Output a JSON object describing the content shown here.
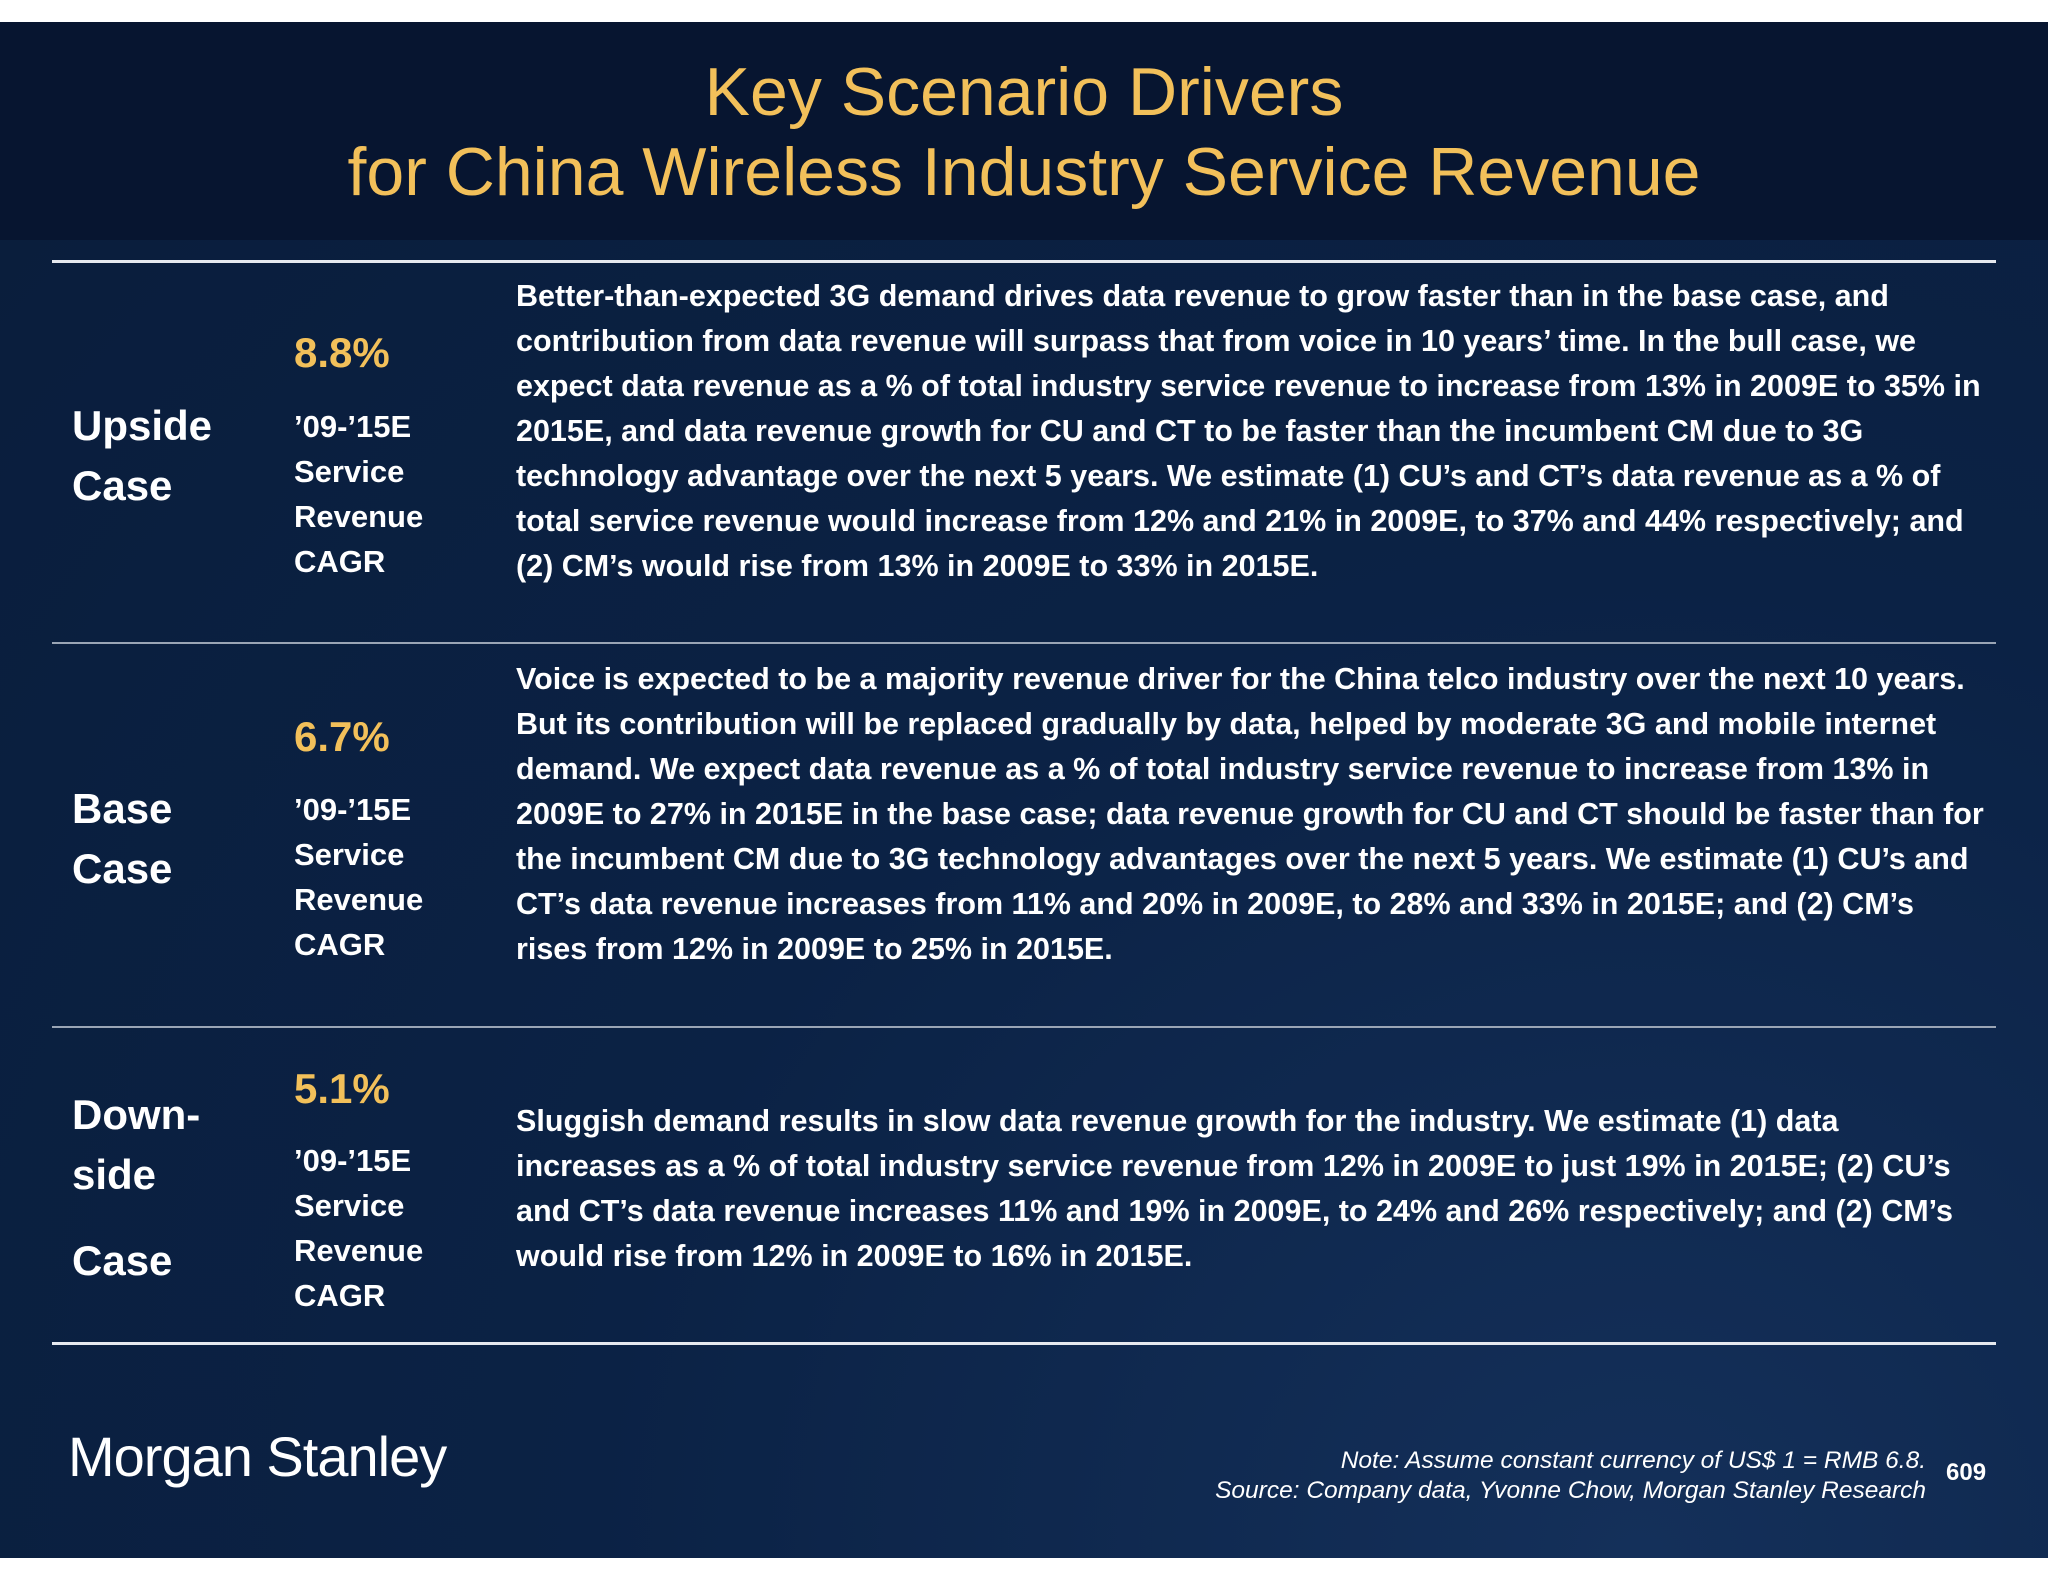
{
  "title": {
    "line1": "Key Scenario Drivers",
    "line2": "for China Wireless Industry Service Revenue"
  },
  "cases": [
    {
      "label_lines": [
        "Upside",
        "Case"
      ],
      "cagr_value": "8.8%",
      "cagr_label": "’09-’15E\nService\nRevenue\nCAGR",
      "description": "Better-than-expected 3G demand drives data revenue to grow faster than in the base case, and contribution from data revenue will surpass that from voice in 10 years’ time. In the bull case, we expect data revenue as a % of total industry service revenue to increase from 13% in 2009E to 35% in 2015E, and data revenue growth for CU and CT to be faster than the incumbent CM due to 3G technology advantage over the next 5 years. We estimate (1) CU’s and CT’s data revenue as a % of total service revenue would increase from 12% and 21% in 2009E, to 37% and 44% respectively; and (2) CM’s would rise from 13% in 2009E to 33% in 2015E."
    },
    {
      "label_lines": [
        "Base",
        "Case"
      ],
      "cagr_value": "6.7%",
      "cagr_label": "’09-’15E\nService\nRevenue\nCAGR",
      "description": "Voice is expected to be a majority revenue driver for the China telco industry over the next 10 years. But its contribution will be replaced gradually by data, helped by moderate 3G and mobile internet demand. We expect data revenue as a % of total industry service revenue to increase from 13% in 2009E to 27% in 2015E in the base case; data revenue growth for CU and CT should  be faster than for the incumbent CM due to 3G technology advantages over the next 5 years. We estimate (1) CU’s and CT’s data revenue increases from 11% and 20% in 2009E, to 28% and 33% in 2015E; and (2) CM’s rises from 12% in 2009E to 25% in 2015E."
    },
    {
      "label_lines": [
        "Down-",
        "side",
        "Case"
      ],
      "cagr_value": "5.1%",
      "cagr_label": "’09-’15E\nService\nRevenue\nCAGR",
      "description": "Sluggish demand results in slow data revenue growth for the industry. We estimate (1) data increases as a % of total industry service revenue from 12% in 2009E to just 19% in 2015E; (2) CU’s and CT’s data revenue increases 11% and 19% in 2009E, to 24% and 26% respectively; and (2) CM’s would rise from 12% in 2009E to 16% in 2015E."
    }
  ],
  "footer": {
    "logo": "Morgan Stanley",
    "note": "Note: Assume constant currency of US$ 1 = RMB 6.8.",
    "source": "Source: Company data, Yvonne Chow, Morgan Stanley Research",
    "page_number": "609"
  },
  "colors": {
    "title": "#f2c05a",
    "cagr_value": "#f2c05a",
    "background": "#0b2245",
    "title_band": "#071530"
  }
}
